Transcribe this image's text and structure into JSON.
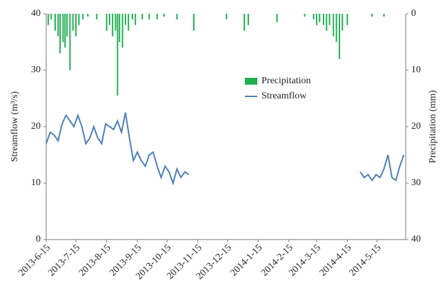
{
  "chart_data": {
    "type": "bar-line",
    "ylabel": "Streamflow (m³/s)",
    "y2label": "Precipitation (mm)",
    "xlim": [
      "2013-6-15",
      "2014-6-15"
    ],
    "xticks": [
      "2013-6-15",
      "2013-7-15",
      "2013-8-15",
      "2013-9-15",
      "2013-10-15",
      "2013-11-15",
      "2013-12-15",
      "2014-1-15",
      "2014-2-15",
      "2014-3-15",
      "2014-4-15",
      "2014-5-15"
    ],
    "ylim": [
      0,
      40
    ],
    "yticks": [
      0,
      10,
      20,
      30,
      40
    ],
    "y2lim": [
      0,
      40
    ],
    "y2ticks": [
      0,
      10,
      20,
      30,
      40
    ],
    "y2inverted": true,
    "legend": "center",
    "series": [
      {
        "name": "Precipitation",
        "type": "bar",
        "axis": "y2",
        "color": "#1fb050",
        "x": [
          "2013-6-17",
          "2013-6-20",
          "2013-6-24",
          "2013-6-27",
          "2013-6-29",
          "2013-7-2",
          "2013-7-4",
          "2013-7-6",
          "2013-7-9",
          "2013-7-12",
          "2013-7-15",
          "2013-7-18",
          "2013-7-22",
          "2013-7-27",
          "2013-8-5",
          "2013-8-15",
          "2013-8-18",
          "2013-8-21",
          "2013-8-24",
          "2013-8-26",
          "2013-8-28",
          "2013-8-31",
          "2013-9-3",
          "2013-9-6",
          "2013-9-10",
          "2013-9-13",
          "2013-9-20",
          "2013-9-27",
          "2013-10-5",
          "2013-10-12",
          "2013-10-25",
          "2013-11-11",
          "2013-12-14",
          "2014-1-1",
          "2014-1-5",
          "2014-2-3",
          "2014-3-3",
          "2014-3-12",
          "2014-3-15",
          "2014-3-18",
          "2014-3-22",
          "2014-3-25",
          "2014-3-28",
          "2014-4-1",
          "2014-4-4",
          "2014-4-7",
          "2014-4-10",
          "2014-4-15",
          "2014-5-10",
          "2014-5-22"
        ],
        "values": [
          2,
          1,
          3,
          4,
          7,
          5,
          6,
          4,
          10,
          3,
          4,
          2,
          1,
          0.5,
          1,
          3,
          2,
          4,
          3,
          14.5,
          5,
          6,
          2,
          3,
          1,
          2,
          1,
          1,
          1,
          0.5,
          1,
          3,
          1,
          3,
          2,
          1.5,
          0.5,
          1,
          2,
          1.5,
          2,
          3,
          2,
          4,
          5,
          8,
          3,
          2,
          0.5,
          0.5
        ]
      },
      {
        "name": "Streamflow",
        "type": "line",
        "axis": "y",
        "color": "#4a7ebb",
        "x": [
          "2013-6-15",
          "2013-6-19",
          "2013-6-23",
          "2013-6-27",
          "2013-7-1",
          "2013-7-5",
          "2013-7-9",
          "2013-7-13",
          "2013-7-17",
          "2013-7-21",
          "2013-7-25",
          "2013-7-29",
          "2013-8-2",
          "2013-8-6",
          "2013-8-10",
          "2013-8-14",
          "2013-8-18",
          "2013-8-22",
          "2013-8-26",
          "2013-8-30",
          "2013-9-3",
          "2013-9-7",
          "2013-9-11",
          "2013-9-15",
          "2013-9-19",
          "2013-9-23",
          "2013-9-27",
          "2013-10-1",
          "2013-10-5",
          "2013-10-9",
          "2013-10-13",
          "2013-10-17",
          "2013-10-21",
          "2013-10-25",
          "2013-10-29",
          "2013-11-2",
          "2013-11-6",
          "2014-1-15",
          "2014-4-28",
          "2014-5-2",
          "2014-5-6",
          "2014-5-10",
          "2014-5-14",
          "2014-5-18",
          "2014-5-22",
          "2014-5-26",
          "2014-5-30",
          "2014-6-3",
          "2014-6-7",
          "2014-6-11"
        ],
        "values": [
          17,
          19,
          18.5,
          17.5,
          20.5,
          22,
          21,
          20,
          22,
          20,
          17,
          18,
          20,
          18,
          17,
          20.5,
          20,
          19.5,
          21,
          19,
          22.5,
          18,
          14,
          15.5,
          14,
          13,
          15,
          15.5,
          13,
          11,
          13,
          12,
          10,
          12.5,
          11,
          12,
          11.5,
          null,
          12,
          11,
          11.5,
          10.5,
          11.5,
          11,
          12.5,
          15,
          11,
          10.5,
          13,
          15
        ]
      }
    ]
  }
}
